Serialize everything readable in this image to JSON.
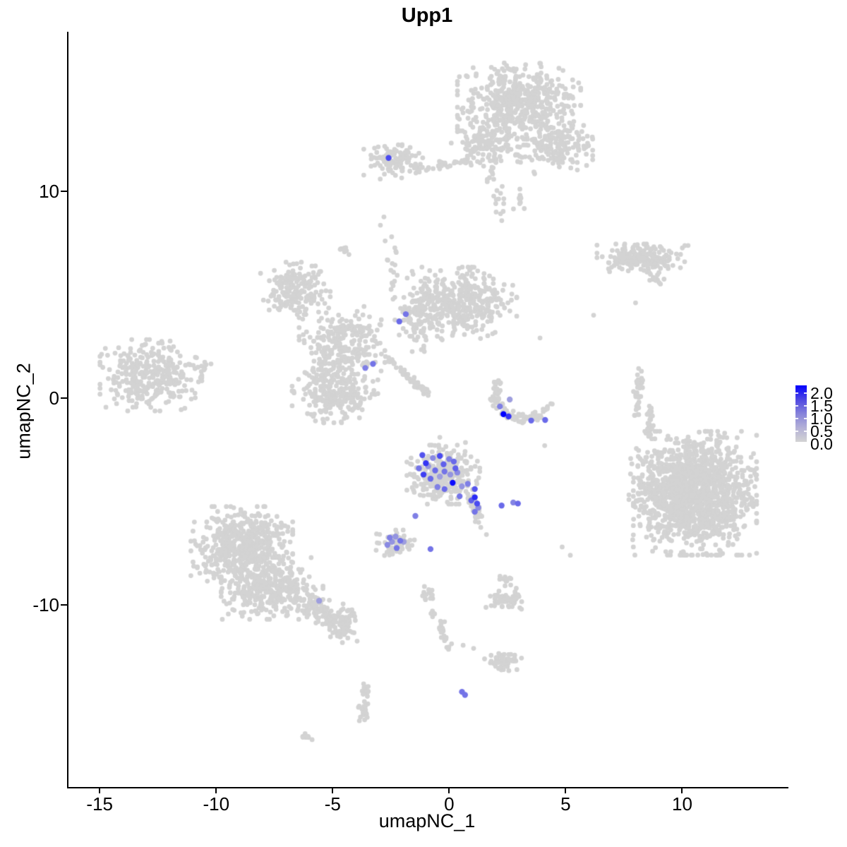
{
  "chart_data": {
    "type": "scatter",
    "title": "Upp1",
    "xlabel": "umapNC_1",
    "ylabel": "umapNC_2",
    "xlim": [
      -16.4,
      14.5
    ],
    "ylim": [
      -18.8,
      17.7
    ],
    "x_ticks": [
      {
        "value": -15,
        "label": "-15"
      },
      {
        "value": -10,
        "label": "-10"
      },
      {
        "value": -5,
        "label": "-5"
      },
      {
        "value": 0,
        "label": "0"
      },
      {
        "value": 5,
        "label": "5"
      },
      {
        "value": 10,
        "label": "10"
      }
    ],
    "y_ticks": [
      {
        "value": 10,
        "label": "10"
      },
      {
        "value": 0,
        "label": "0"
      },
      {
        "value": -10,
        "label": "-10"
      }
    ],
    "grid": false,
    "legend": {
      "position": "right",
      "labels": [
        "2.0",
        "1.5",
        "1.0",
        "0.5",
        "0.0"
      ],
      "values": [
        2.0,
        1.5,
        1.0,
        0.5,
        0.0
      ],
      "low_color": "#D3D3D3",
      "high_color": "#0000FF"
    },
    "colors": {
      "background_cell": "#D3D3D3",
      "axis": "#000000"
    },
    "point_radius_grey": 3.4,
    "point_radius_expressing": 4.2,
    "value_range": [
      0.0,
      2.0
    ],
    "grey_clusters": [
      {
        "name": "top-main-blob",
        "shape": "gauss",
        "cx": 3.0,
        "cy": 14.35,
        "sx": 1.15,
        "sy": 0.8,
        "n": 520
      },
      {
        "name": "top-right-arm",
        "shape": "gauss",
        "cx": 4.55,
        "cy": 12.1,
        "sx": 0.7,
        "sy": 0.55,
        "n": 180
      },
      {
        "name": "top-left-lobe",
        "shape": "gauss",
        "cx": 1.7,
        "cy": 12.3,
        "sx": 0.7,
        "sy": 0.5,
        "n": 150
      },
      {
        "name": "top-left-trail",
        "shape": "line",
        "pts": [
          [
            -0.6,
            11.2
          ],
          [
            1.0,
            11.5
          ]
        ],
        "jitter": 0.12,
        "n": 28
      },
      {
        "name": "top-neck-sparse",
        "shape": "line",
        "pts": [
          [
            1.95,
            11.3
          ],
          [
            2.15,
            8.7
          ]
        ],
        "jitter": 0.18,
        "n": 22
      },
      {
        "name": "neck-blob",
        "shape": "gauss",
        "cx": 3.0,
        "cy": 9.6,
        "sx": 0.18,
        "sy": 0.3,
        "n": 10
      },
      {
        "name": "upper-left-small",
        "shape": "gauss",
        "cx": -2.4,
        "cy": 11.5,
        "sx": 0.55,
        "sy": 0.4,
        "n": 110
      },
      {
        "name": "upper-left-small-trail",
        "shape": "line",
        "pts": [
          [
            -1.7,
            11.15
          ],
          [
            -0.9,
            11.05
          ]
        ],
        "jitter": 0.1,
        "n": 12
      },
      {
        "name": "right-elongated",
        "shape": "gauss",
        "cx": 8.3,
        "cy": 6.75,
        "sx": 0.85,
        "sy": 0.3,
        "n": 200
      },
      {
        "name": "right-elongated-streak",
        "shape": "line",
        "pts": [
          [
            8.45,
            6.1
          ],
          [
            9.2,
            5.5
          ]
        ],
        "jitter": 0.1,
        "n": 16
      },
      {
        "name": "far-left",
        "shape": "gauss",
        "cx": -12.8,
        "cy": 1.1,
        "sx": 0.95,
        "sy": 0.75,
        "n": 330
      },
      {
        "name": "far-left-tail",
        "shape": "line",
        "pts": [
          [
            -11.3,
            1.5
          ],
          [
            -10.3,
            1.6
          ]
        ],
        "jitter": 0.12,
        "n": 12
      },
      {
        "name": "web-upper",
        "shape": "gauss",
        "cx": -6.6,
        "cy": 5.3,
        "sx": 0.65,
        "sy": 0.55,
        "n": 190
      },
      {
        "name": "web-middle",
        "shape": "gauss",
        "cx": -4.6,
        "cy": 2.7,
        "sx": 0.8,
        "sy": 0.75,
        "n": 240
      },
      {
        "name": "web-lower",
        "shape": "gauss",
        "cx": -4.9,
        "cy": 0.3,
        "sx": 0.8,
        "sy": 0.65,
        "n": 260
      },
      {
        "name": "mid-center-sparse",
        "shape": "gauss",
        "cx": -1.2,
        "cy": 4.2,
        "sx": 0.6,
        "sy": 0.85,
        "n": 150
      },
      {
        "name": "mid-vertical-strand",
        "shape": "line",
        "pts": [
          [
            -2.5,
            7.9
          ],
          [
            -2.3,
            5.2
          ]
        ],
        "jitter": 0.15,
        "n": 16
      },
      {
        "name": "mid-right-lobe",
        "shape": "gauss",
        "cx": 0.6,
        "cy": 4.6,
        "sx": 1.0,
        "sy": 0.75,
        "n": 340
      },
      {
        "name": "diagonal-streak",
        "shape": "line",
        "pts": [
          [
            -2.7,
            1.95
          ],
          [
            -0.9,
            0.2
          ]
        ],
        "jitter": 0.07,
        "n": 55
      },
      {
        "name": "crescent",
        "shape": "line",
        "pts": [
          [
            2.05,
            0.8
          ],
          [
            1.95,
            -0.15
          ],
          [
            2.45,
            -0.75
          ],
          [
            3.2,
            -1.0
          ],
          [
            4.0,
            -0.8
          ],
          [
            4.35,
            -0.35
          ]
        ],
        "jitter": 0.13,
        "n": 100
      },
      {
        "name": "right-streak-1",
        "shape": "line",
        "pts": [
          [
            8.15,
            1.25
          ],
          [
            8.05,
            -0.75
          ]
        ],
        "jitter": 0.08,
        "n": 38
      },
      {
        "name": "right-streak-2",
        "shape": "line",
        "pts": [
          [
            8.6,
            -0.45
          ],
          [
            8.55,
            -2.05
          ]
        ],
        "jitter": 0.08,
        "n": 28
      },
      {
        "name": "big-right",
        "shape": "gauss",
        "cx": 10.55,
        "cy": -4.6,
        "sx": 1.15,
        "sy": 1.3,
        "n": 1350
      },
      {
        "name": "big-right-fringe",
        "shape": "gauss",
        "cx": 8.75,
        "cy": -4.5,
        "sx": 0.45,
        "sy": 1.1,
        "n": 110
      },
      {
        "name": "central-expressing-grey",
        "shape": "gauss",
        "cx": -0.25,
        "cy": -3.7,
        "sx": 0.68,
        "sy": 0.62,
        "n": 290
      },
      {
        "name": "central-tail",
        "shape": "line",
        "pts": [
          [
            0.9,
            -4.7
          ],
          [
            1.35,
            -6.1
          ]
        ],
        "jitter": 0.1,
        "n": 36
      },
      {
        "name": "small-lower-grey",
        "shape": "gauss",
        "cx": -2.3,
        "cy": -7.0,
        "sx": 0.4,
        "sy": 0.27,
        "n": 60
      },
      {
        "name": "bottom-left-upper",
        "shape": "gauss",
        "cx": -8.9,
        "cy": -7.2,
        "sx": 0.95,
        "sy": 0.85,
        "n": 580
      },
      {
        "name": "bottom-left-lower",
        "shape": "gauss",
        "cx": -7.6,
        "cy": -9.2,
        "sx": 0.95,
        "sy": 0.65,
        "n": 340
      },
      {
        "name": "bottom-left-tail",
        "shape": "line",
        "pts": [
          [
            -6.3,
            -9.8
          ],
          [
            -4.3,
            -11.1
          ]
        ],
        "jitter": 0.28,
        "n": 120
      },
      {
        "name": "bottom-small-left",
        "shape": "gauss",
        "cx": -4.5,
        "cy": -10.9,
        "sx": 0.28,
        "sy": 0.4,
        "n": 40
      },
      {
        "name": "bottom-strand-top",
        "shape": "gauss",
        "cx": -0.92,
        "cy": -9.5,
        "sx": 0.13,
        "sy": 0.22,
        "n": 16
      },
      {
        "name": "bottom-strand",
        "shape": "line",
        "pts": [
          [
            -0.75,
            -10.3
          ],
          [
            0.2,
            -12.4
          ]
        ],
        "jitter": 0.1,
        "n": 26
      },
      {
        "name": "bottom-mid-right",
        "shape": "gauss",
        "cx": 2.5,
        "cy": -9.7,
        "sx": 0.4,
        "sy": 0.22,
        "n": 60
      },
      {
        "name": "bottom-mid-right-top",
        "shape": "gauss",
        "cx": 2.35,
        "cy": -8.75,
        "sx": 0.13,
        "sy": 0.18,
        "n": 10
      },
      {
        "name": "bottom-lower-right",
        "shape": "gauss",
        "cx": 2.3,
        "cy": -12.75,
        "sx": 0.35,
        "sy": 0.25,
        "n": 48
      },
      {
        "name": "bottom-left-strand",
        "shape": "line",
        "pts": [
          [
            -3.55,
            -13.8
          ],
          [
            -3.8,
            -15.6
          ]
        ],
        "jitter": 0.12,
        "n": 30
      },
      {
        "name": "bottom-dash",
        "shape": "line",
        "pts": [
          [
            -6.3,
            -16.3
          ],
          [
            -5.85,
            -16.45
          ]
        ],
        "jitter": 0.06,
        "n": 9
      },
      {
        "name": "mid-sprinkle-clump",
        "shape": "gauss",
        "cx": -4.5,
        "cy": 7.1,
        "sx": 0.18,
        "sy": 0.15,
        "n": 9
      }
    ],
    "grey_singles": [
      [
        -2.8,
        8.75
      ],
      [
        -2.95,
        8.35
      ],
      [
        3.9,
        2.9
      ],
      [
        6.2,
        4.0
      ],
      [
        8.0,
        4.6
      ],
      [
        4.1,
        -2.3
      ],
      [
        4.85,
        -7.2
      ],
      [
        5.2,
        -7.6
      ],
      [
        2.6,
        -8.7
      ],
      [
        1.6,
        -6.6
      ],
      [
        -4.35,
        -11.6
      ],
      [
        -3.95,
        -11.75
      ],
      [
        0.6,
        -11.95
      ],
      [
        1.05,
        -12.1
      ],
      [
        -0.4,
        -1.9
      ],
      [
        0.7,
        -2.15
      ]
    ],
    "expressing_cells": [
      [
        -1.15,
        -2.76,
        1.2
      ],
      [
        -1.0,
        -3.15,
        1.5
      ],
      [
        -0.4,
        -2.8,
        1.3
      ],
      [
        -0.24,
        -3.2,
        1.1
      ],
      [
        -0.6,
        -3.5,
        1.0
      ],
      [
        -0.2,
        -3.55,
        0.9
      ],
      [
        0.2,
        -3.07,
        1.0
      ],
      [
        0.27,
        -3.4,
        1.1
      ],
      [
        -1.1,
        -3.7,
        1.4
      ],
      [
        -0.8,
        -3.9,
        1.0
      ],
      [
        0.15,
        -4.1,
        1.9
      ],
      [
        -0.5,
        -4.3,
        0.8
      ],
      [
        -0.2,
        -4.4,
        1.0
      ],
      [
        0.45,
        -4.75,
        0.9
      ],
      [
        1.1,
        -4.4,
        1.2
      ],
      [
        1.1,
        -4.8,
        1.6
      ],
      [
        1.2,
        -5.1,
        1.3
      ],
      [
        1.1,
        -5.5,
        0.9
      ],
      [
        -1.45,
        -5.7,
        0.8
      ],
      [
        -0.9,
        -3.3,
        0.6
      ],
      [
        -0.4,
        -3.8,
        0.5
      ],
      [
        0.05,
        -3.7,
        0.6
      ],
      [
        0.55,
        -4.27,
        0.6
      ],
      [
        -0.7,
        -2.9,
        0.7
      ],
      [
        -1.3,
        -3.4,
        0.9
      ],
      [
        0.0,
        -2.95,
        0.8
      ],
      [
        0.35,
        -3.6,
        0.7
      ],
      [
        0.8,
        -4.15,
        0.8
      ],
      [
        0.95,
        -4.95,
        1.1
      ],
      [
        1.25,
        -5.3,
        0.7
      ],
      [
        2.25,
        -5.2,
        1.0
      ],
      [
        2.75,
        -5.05,
        0.75
      ],
      [
        2.95,
        -5.1,
        1.0
      ],
      [
        -2.55,
        -6.75,
        0.8
      ],
      [
        -2.3,
        -6.7,
        0.6
      ],
      [
        -2.1,
        -6.9,
        0.9
      ],
      [
        -2.65,
        -7.1,
        0.7
      ],
      [
        -2.25,
        -7.25,
        0.9
      ],
      [
        -1.95,
        -6.95,
        0.5
      ],
      [
        -2.45,
        -6.95,
        0.6
      ],
      [
        -0.8,
        -7.3,
        0.9
      ],
      [
        2.18,
        -0.41,
        0.8
      ],
      [
        2.33,
        -0.78,
        2.0
      ],
      [
        2.55,
        -0.89,
        1.5
      ],
      [
        2.6,
        -0.07,
        0.5
      ],
      [
        3.52,
        -1.09,
        1.0
      ],
      [
        4.12,
        -1.06,
        1.0
      ],
      [
        -2.6,
        11.6,
        1.3
      ],
      [
        -1.86,
        4.05,
        0.9
      ],
      [
        -2.14,
        3.7,
        1.0
      ],
      [
        -3.27,
        1.65,
        0.9
      ],
      [
        -3.6,
        1.45,
        0.8
      ],
      [
        -5.58,
        -9.8,
        0.5
      ],
      [
        0.55,
        -14.2,
        0.9
      ],
      [
        0.68,
        -14.35,
        0.9
      ]
    ]
  }
}
